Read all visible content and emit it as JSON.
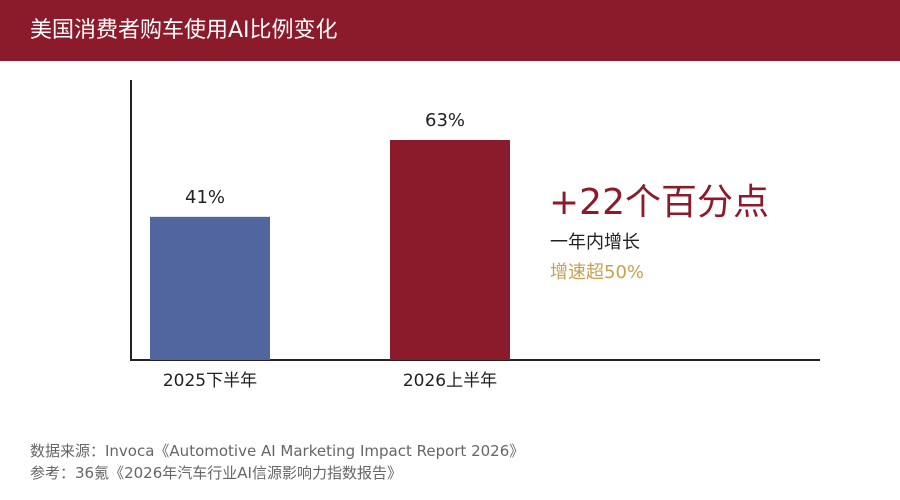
{
  "header": {
    "title": "美国消费者购车使用AI比例变化"
  },
  "chart_data": {
    "type": "bar",
    "title": "美国消费者购车使用AI比例变化",
    "xlabel": "",
    "ylabel": "",
    "categories": [
      "2025下半年",
      "2026上半年"
    ],
    "values": [
      41,
      63
    ],
    "data_labels": [
      "41%",
      "63%"
    ],
    "unit": "%",
    "ylim": [
      0,
      100
    ],
    "bar_colors": [
      "#51669e",
      "#8b1a2b"
    ],
    "grid": false
  },
  "annotation": {
    "main": "+22个百分点",
    "sub1": "一年内增长",
    "sub2": "增速超50%"
  },
  "footer": {
    "source": "数据来源：Invoca《Automotive AI Marketing Impact Report 2026》",
    "reference": "参考：36氪《2026年汽车行业AI信源影响力指数报告》"
  },
  "colors": {
    "brand": "#8b1a2b",
    "accent_gold": "#c9a050",
    "bar_blue": "#51669e",
    "axis": "#222222"
  }
}
